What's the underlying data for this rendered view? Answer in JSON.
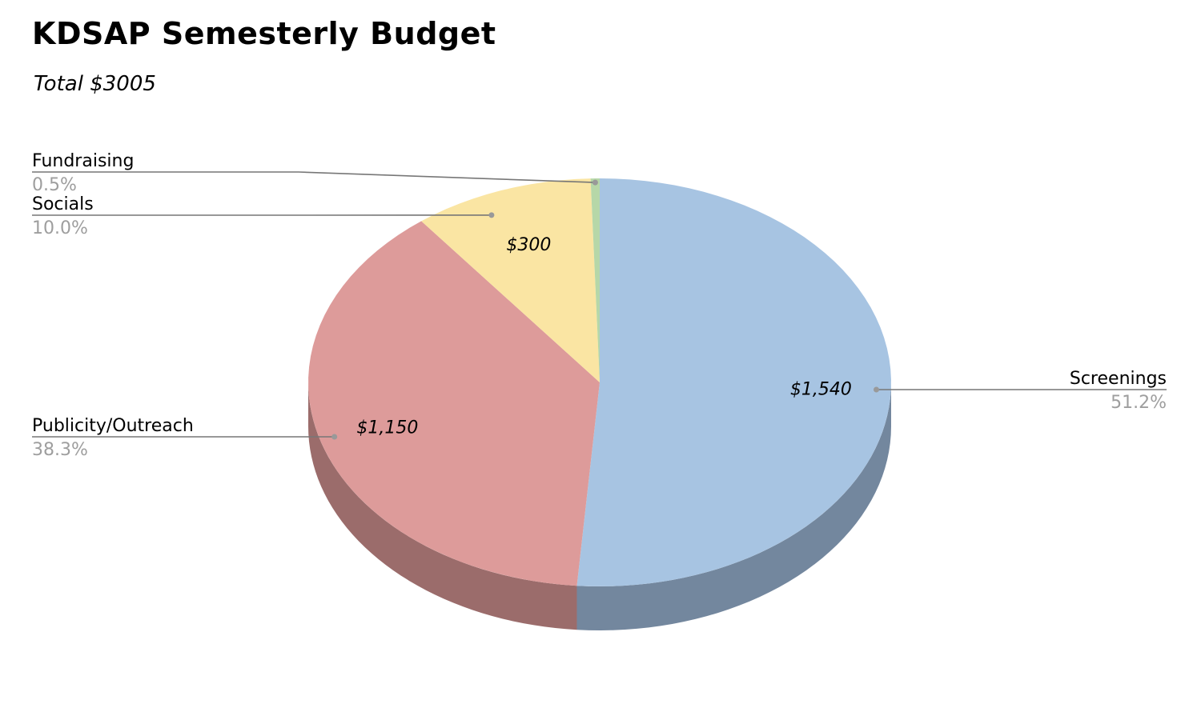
{
  "chart_data": {
    "type": "pie",
    "title": "KDSAP Semesterly Budget",
    "subtitle": "Total $3005",
    "slices": [
      {
        "name": "Screenings",
        "value": 1540,
        "value_label": "$1,540",
        "percent_label": "51.2%",
        "color": "#a7c4e2",
        "side_color": "#73879e"
      },
      {
        "name": "Publicity/Outreach",
        "value": 1150,
        "value_label": "$1,150",
        "percent_label": "38.3%",
        "color": "#dd9b9a",
        "side_color": "#9b6c6b"
      },
      {
        "name": "Socials",
        "value": 300,
        "value_label": "$300",
        "percent_label": "10.0%",
        "color": "#fae5a3",
        "side_color": "#afa072"
      },
      {
        "name": "Fundraising",
        "value": 15,
        "value_label": "",
        "percent_label": "0.5%",
        "color": "#b6d7a8",
        "side_color": "#7f9675"
      }
    ],
    "style": "3d",
    "legend": "outside labels with leader lines"
  }
}
